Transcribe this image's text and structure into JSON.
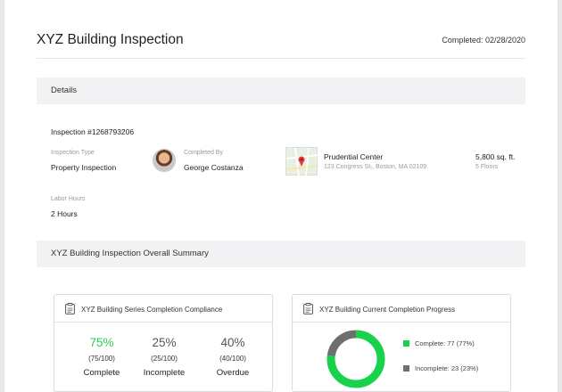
{
  "header": {
    "title": "XYZ Building Inspection",
    "completed": "Completed: 02/28/2020"
  },
  "details": {
    "section_title": "Details",
    "inspection_number": "Inspection #1268793206",
    "inspection_type_label": "Inspection Type",
    "inspection_type": "Property Inspection",
    "completed_by_label": "Completed By",
    "completed_by": "George Costanza",
    "location_name": "Prudential Center",
    "location_address": "123 Congress St., Boston, MA 02109",
    "area": "5,800 sq. ft.",
    "floors": "5 Floors",
    "labor_hours_label": "Labor Hours",
    "labor_hours": "2 Hours"
  },
  "summary": {
    "section_title": "XYZ Building Inspection Overall Summary"
  },
  "compliance_card": {
    "title": "XYZ Building Series Completion Compliance",
    "icon": "clipboard-icon",
    "stats": [
      {
        "pct": "75%",
        "frac": "(75/100)",
        "name": "Complete",
        "color": "#2ecc55"
      },
      {
        "pct": "25%",
        "frac": "(25/100)",
        "name": "Incomplete",
        "color": "#555555"
      },
      {
        "pct": "40%",
        "frac": "(40/100)",
        "name": "Overdue",
        "color": "#555555"
      }
    ]
  },
  "progress_card": {
    "title": "XYZ Building Current Completion Progress",
    "icon": "clipboard-icon",
    "legend": [
      {
        "label": "Complete: 77 (77%)",
        "color": "#17d24a"
      },
      {
        "label": "Incomplete: 23 (23%)",
        "color": "#6e6e6e"
      }
    ]
  },
  "chart_data": {
    "type": "pie",
    "categories": [
      "Complete",
      "Incomplete"
    ],
    "values": [
      77,
      23
    ],
    "colors": [
      "#17d24a",
      "#6e6e6e"
    ]
  }
}
